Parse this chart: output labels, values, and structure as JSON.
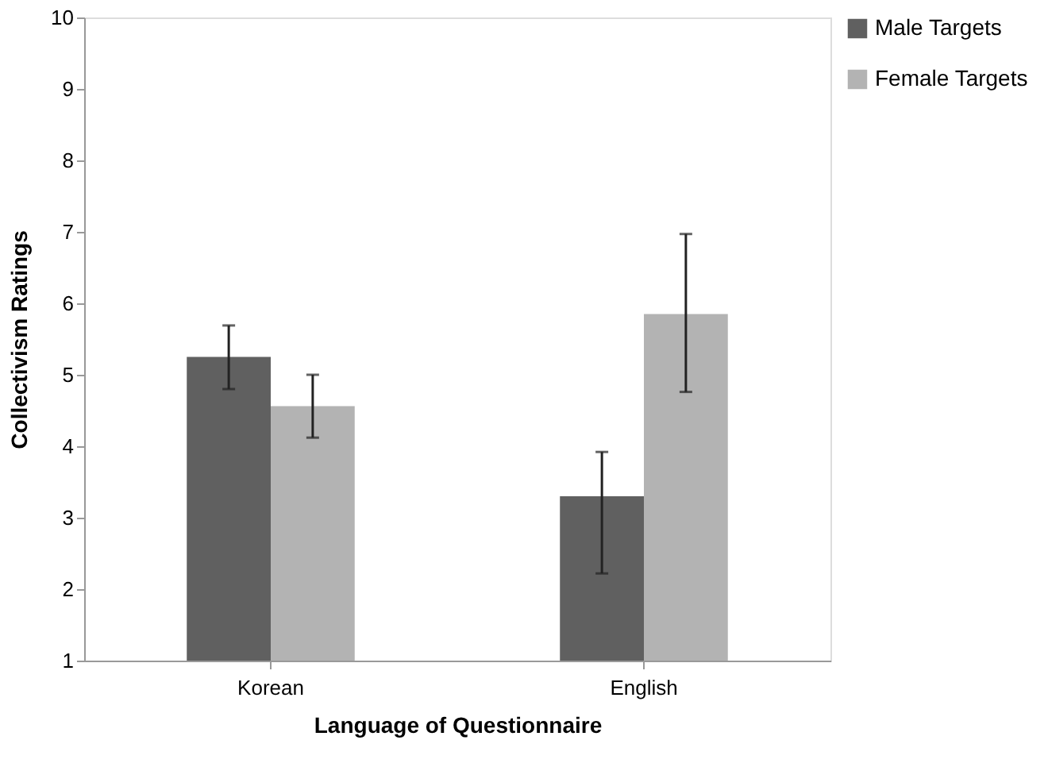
{
  "chart_data": {
    "type": "bar",
    "xlabel": "Language of Questionnaire",
    "ylabel": "Collectivism Ratings",
    "categories": [
      "Korean",
      "English"
    ],
    "series": [
      {
        "name": "Male Targets",
        "color": "#606060",
        "values": [
          5.25,
          3.3
        ],
        "errors": [
          [
            4.8,
            5.69
          ],
          [
            2.22,
            3.92
          ]
        ]
      },
      {
        "name": "Female Targets",
        "color": "#b3b3b3",
        "values": [
          4.56,
          5.85
        ],
        "errors": [
          [
            4.12,
            5.0
          ],
          [
            4.76,
            6.97
          ]
        ]
      }
    ],
    "ylim": [
      1,
      10
    ],
    "yticks": [
      1,
      2,
      3,
      4,
      5,
      6,
      7,
      8,
      9,
      10
    ],
    "grid": false,
    "legend": "top right"
  }
}
